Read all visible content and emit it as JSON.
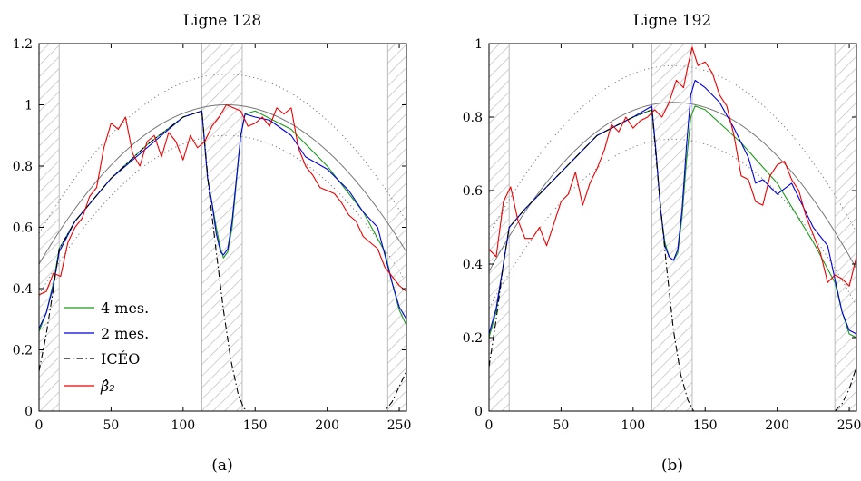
{
  "figure": {
    "panels": [
      {
        "title": "Ligne 128",
        "caption": "(a)"
      },
      {
        "title": "Ligne 192",
        "caption": "(b)"
      }
    ]
  },
  "legend": [
    {
      "label": "4 mes.",
      "color": "#1a9a1a",
      "dash": "solid"
    },
    {
      "label": "2 mes.",
      "color": "#0000dd",
      "dash": "solid"
    },
    {
      "label": "ICÉO",
      "color": "#000000",
      "dash": "dashdot"
    },
    {
      "label": "β̂₂",
      "color": "#ee0000",
      "dash": "solid"
    }
  ],
  "colors": {
    "four_mes": "#1a9a1a",
    "two_mes": "#0000dd",
    "iceo": "#000000",
    "beta2": "#ee0000",
    "reference": "#777777",
    "hatch": "#bbbbbb"
  },
  "chart_data": [
    {
      "type": "line",
      "title": "Ligne 128",
      "xlim": [
        0,
        255
      ],
      "ylim": [
        0,
        1.2
      ],
      "xticks": [
        0,
        50,
        100,
        150,
        200,
        250
      ],
      "yticks": [
        0,
        0.2,
        0.4,
        0.6,
        0.8,
        1,
        1.2
      ],
      "ytick_labels": [
        "0",
        "0.2",
        "0.4",
        "0.6",
        "0.8",
        "1",
        "1.2"
      ],
      "shaded_x_ranges": [
        [
          0,
          14
        ],
        [
          113,
          141
        ],
        [
          242,
          255
        ]
      ],
      "reference": {
        "peak_x": 130,
        "peak_y": 1.0,
        "edge_y": 0.48
      },
      "envelope": {
        "upper_offset": 0.1,
        "lower_offset": -0.1
      },
      "series": [
        {
          "name": "4 mes.",
          "x": [
            0,
            5,
            10,
            14,
            25,
            50,
            75,
            100,
            113,
            117,
            120,
            123,
            126,
            128,
            131,
            134,
            137,
            140,
            143,
            150,
            175,
            200,
            225,
            240,
            245,
            250,
            255
          ],
          "y": [
            0.26,
            0.32,
            0.42,
            0.53,
            0.62,
            0.76,
            0.87,
            0.96,
            0.98,
            0.76,
            0.68,
            0.6,
            0.53,
            0.5,
            0.52,
            0.6,
            0.75,
            0.9,
            0.97,
            0.98,
            0.92,
            0.8,
            0.65,
            0.52,
            0.42,
            0.33,
            0.28
          ]
        },
        {
          "name": "2 mes.",
          "x": [
            0,
            5,
            10,
            14,
            25,
            50,
            75,
            100,
            113,
            117,
            120,
            123,
            126,
            128,
            131,
            134,
            137,
            140,
            143,
            150,
            160,
            175,
            185,
            200,
            215,
            225,
            235,
            240,
            245,
            250,
            255
          ],
          "y": [
            0.27,
            0.32,
            0.41,
            0.52,
            0.62,
            0.76,
            0.86,
            0.96,
            0.98,
            0.76,
            0.68,
            0.58,
            0.52,
            0.51,
            0.53,
            0.62,
            0.76,
            0.9,
            0.97,
            0.96,
            0.95,
            0.9,
            0.83,
            0.79,
            0.72,
            0.65,
            0.6,
            0.51,
            0.42,
            0.34,
            0.3
          ]
        },
        {
          "name": "ICÉO",
          "x": [
            0,
            5,
            10,
            14,
            25,
            50,
            75,
            100,
            113,
            118,
            123,
            128,
            133,
            138,
            142,
            145,
            240,
            245,
            250,
            255
          ],
          "y": [
            0.13,
            0.25,
            0.4,
            0.53,
            0.62,
            0.76,
            0.87,
            0.96,
            0.98,
            0.72,
            0.52,
            0.33,
            0.17,
            0.06,
            0.01,
            0.0,
            0.0,
            0.03,
            0.08,
            0.13
          ]
        },
        {
          "name": "β̂₂",
          "x": [
            0,
            5,
            10,
            15,
            20,
            25,
            30,
            35,
            40,
            45,
            50,
            55,
            60,
            65,
            70,
            75,
            80,
            85,
            90,
            95,
            100,
            105,
            110,
            115,
            120,
            125,
            130,
            135,
            140,
            145,
            150,
            155,
            160,
            165,
            170,
            175,
            180,
            185,
            190,
            195,
            200,
            205,
            210,
            215,
            220,
            225,
            230,
            235,
            240,
            245,
            250,
            255
          ],
          "y": [
            0.38,
            0.39,
            0.45,
            0.44,
            0.55,
            0.6,
            0.63,
            0.7,
            0.73,
            0.86,
            0.94,
            0.92,
            0.96,
            0.84,
            0.8,
            0.88,
            0.9,
            0.83,
            0.91,
            0.88,
            0.82,
            0.9,
            0.86,
            0.88,
            0.93,
            0.96,
            1.0,
            0.99,
            0.98,
            0.93,
            0.94,
            0.96,
            0.93,
            0.99,
            0.97,
            0.99,
            0.86,
            0.8,
            0.77,
            0.73,
            0.72,
            0.71,
            0.68,
            0.64,
            0.62,
            0.57,
            0.55,
            0.53,
            0.47,
            0.44,
            0.41,
            0.39
          ]
        }
      ]
    },
    {
      "type": "line",
      "title": "Ligne 192",
      "xlim": [
        0,
        255
      ],
      "ylim": [
        0,
        1
      ],
      "xticks": [
        0,
        50,
        100,
        150,
        200,
        250
      ],
      "yticks": [
        0,
        0.2,
        0.4,
        0.6,
        0.8,
        1
      ],
      "ytick_labels": [
        "0",
        "0.2",
        "0.4",
        "0.6",
        "0.8",
        "1"
      ],
      "shaded_x_ranges": [
        [
          0,
          14
        ],
        [
          113,
          141
        ],
        [
          240,
          255
        ]
      ],
      "reference": {
        "peak_x": 128,
        "peak_y": 0.84,
        "edge_y": 0.38
      },
      "envelope": {
        "upper_offset": 0.1,
        "lower_offset": -0.1
      },
      "series": [
        {
          "name": "4 mes.",
          "x": [
            0,
            5,
            10,
            14,
            25,
            50,
            75,
            100,
            113,
            116,
            119,
            122,
            125,
            128,
            131,
            134,
            137,
            140,
            143,
            150,
            175,
            200,
            225,
            240,
            245,
            250,
            255
          ],
          "y": [
            0.2,
            0.27,
            0.4,
            0.5,
            0.55,
            0.65,
            0.75,
            0.8,
            0.82,
            0.7,
            0.55,
            0.46,
            0.42,
            0.41,
            0.43,
            0.53,
            0.68,
            0.8,
            0.83,
            0.82,
            0.73,
            0.62,
            0.46,
            0.35,
            0.27,
            0.21,
            0.2
          ]
        },
        {
          "name": "2 mes.",
          "x": [
            0,
            5,
            10,
            14,
            25,
            50,
            75,
            100,
            113,
            116,
            119,
            122,
            125,
            128,
            131,
            134,
            137,
            140,
            143,
            150,
            160,
            170,
            180,
            185,
            190,
            200,
            210,
            225,
            235,
            240,
            245,
            250,
            255
          ],
          "y": [
            0.21,
            0.28,
            0.4,
            0.5,
            0.55,
            0.65,
            0.75,
            0.8,
            0.83,
            0.7,
            0.55,
            0.45,
            0.42,
            0.41,
            0.44,
            0.55,
            0.72,
            0.86,
            0.9,
            0.88,
            0.84,
            0.77,
            0.69,
            0.62,
            0.63,
            0.59,
            0.62,
            0.5,
            0.45,
            0.36,
            0.27,
            0.22,
            0.21
          ]
        },
        {
          "name": "ICÉO",
          "x": [
            0,
            5,
            10,
            14,
            25,
            50,
            75,
            100,
            113,
            118,
            123,
            128,
            133,
            138,
            142,
            145,
            240,
            245,
            250,
            255
          ],
          "y": [
            0.12,
            0.25,
            0.4,
            0.5,
            0.55,
            0.65,
            0.75,
            0.8,
            0.82,
            0.6,
            0.4,
            0.22,
            0.1,
            0.03,
            0.0,
            0.0,
            0.0,
            0.02,
            0.06,
            0.12
          ]
        },
        {
          "name": "β̂₂",
          "x": [
            0,
            5,
            10,
            15,
            20,
            25,
            30,
            35,
            40,
            45,
            50,
            55,
            60,
            65,
            70,
            75,
            80,
            85,
            90,
            95,
            100,
            105,
            110,
            115,
            120,
            125,
            130,
            135,
            138,
            141,
            145,
            150,
            155,
            160,
            165,
            170,
            175,
            180,
            185,
            190,
            195,
            200,
            205,
            210,
            215,
            220,
            225,
            230,
            235,
            240,
            245,
            250,
            255
          ],
          "y": [
            0.44,
            0.42,
            0.57,
            0.61,
            0.52,
            0.47,
            0.47,
            0.5,
            0.45,
            0.51,
            0.57,
            0.59,
            0.65,
            0.56,
            0.62,
            0.66,
            0.71,
            0.78,
            0.76,
            0.8,
            0.77,
            0.79,
            0.8,
            0.82,
            0.8,
            0.84,
            0.9,
            0.88,
            0.94,
            0.99,
            0.94,
            0.95,
            0.92,
            0.86,
            0.83,
            0.75,
            0.64,
            0.63,
            0.57,
            0.56,
            0.64,
            0.67,
            0.68,
            0.63,
            0.6,
            0.53,
            0.48,
            0.43,
            0.35,
            0.37,
            0.36,
            0.34,
            0.42
          ]
        }
      ]
    }
  ]
}
